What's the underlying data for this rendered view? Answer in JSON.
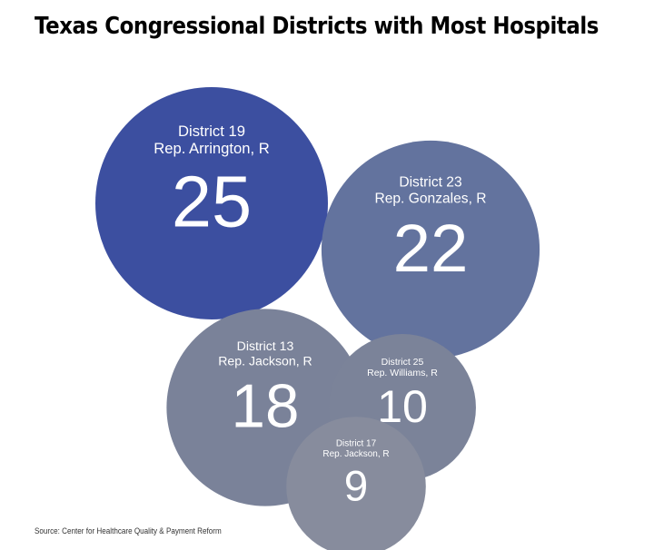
{
  "title": "Texas Congressional Districts with Most Hospitals",
  "source": "Source: Center for Healthcare Quality & Payment Reform",
  "chart_data": {
    "type": "bubble",
    "title": "Texas Congressional Districts with Most Hospitals",
    "series": [
      {
        "district": "District 19",
        "rep": "Rep. Arrington, R",
        "value": 25,
        "color": "#3c4fa0"
      },
      {
        "district": "District 23",
        "rep": "Rep. Gonzales, R",
        "value": 22,
        "color": "#63739e"
      },
      {
        "district": "District 13",
        "rep": "Rep. Jackson, R",
        "value": 18,
        "color": "#7a8299"
      },
      {
        "district": "District 25",
        "rep": "Rep.  Williams, R",
        "value": 10,
        "color": "#7b8399"
      },
      {
        "district": "District 17",
        "rep": "Rep. Jackson, R",
        "value": 9,
        "color": "#878c9d"
      }
    ]
  }
}
